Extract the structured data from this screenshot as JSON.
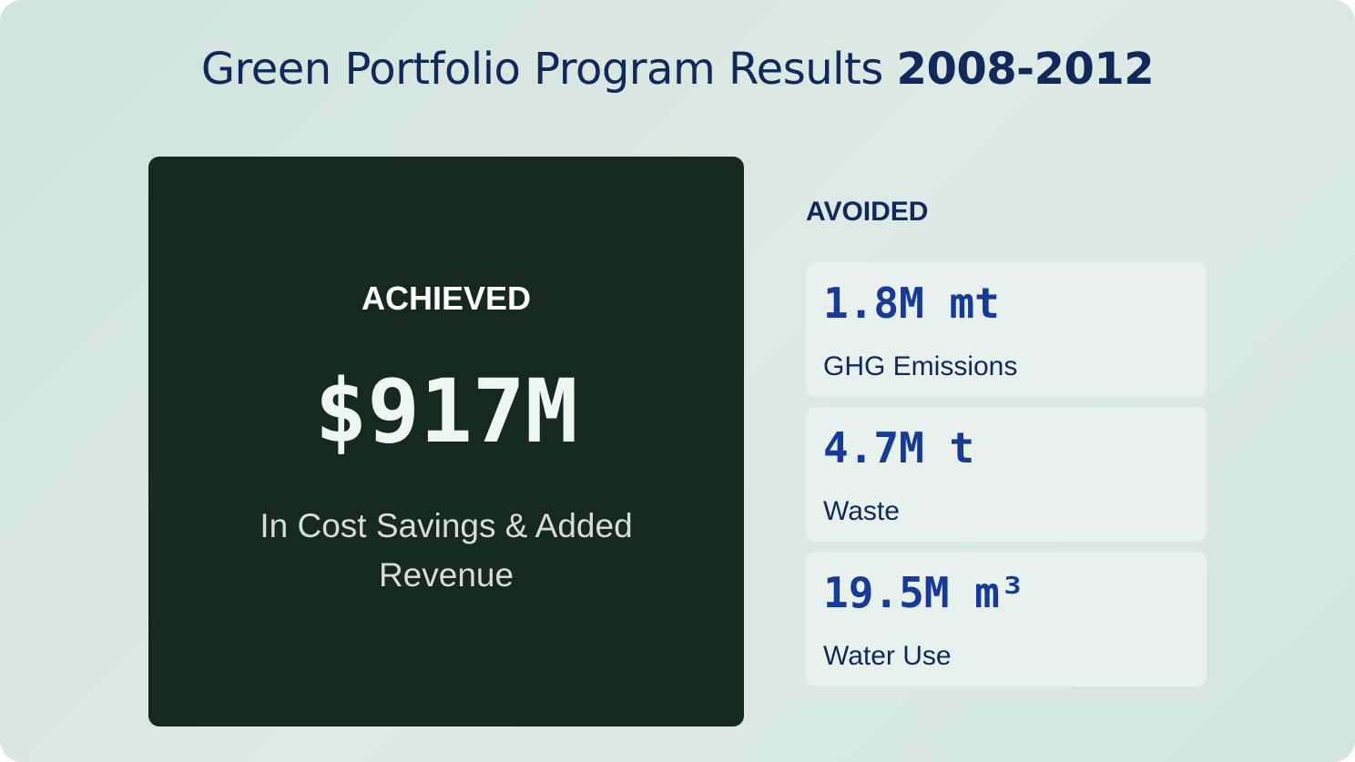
{
  "header": {
    "title_main": "Green Portfolio Program Results",
    "title_years": "2008-2012"
  },
  "achieved": {
    "label": "ACHIEVED",
    "value": "$917M",
    "caption": "In Cost Savings & Added Revenue"
  },
  "avoided": {
    "heading": "AVOIDED",
    "items": [
      {
        "value": "1.8M mt",
        "label": "GHG Emissions"
      },
      {
        "value": "4.7M t",
        "label": "Waste"
      },
      {
        "value": "19.5M m³",
        "label": "Water Use"
      }
    ]
  },
  "colors": {
    "background": "#d6e7e1",
    "hero_background": "#15291f",
    "navy_text": "#10285a",
    "accent_blue": "#153a99"
  }
}
